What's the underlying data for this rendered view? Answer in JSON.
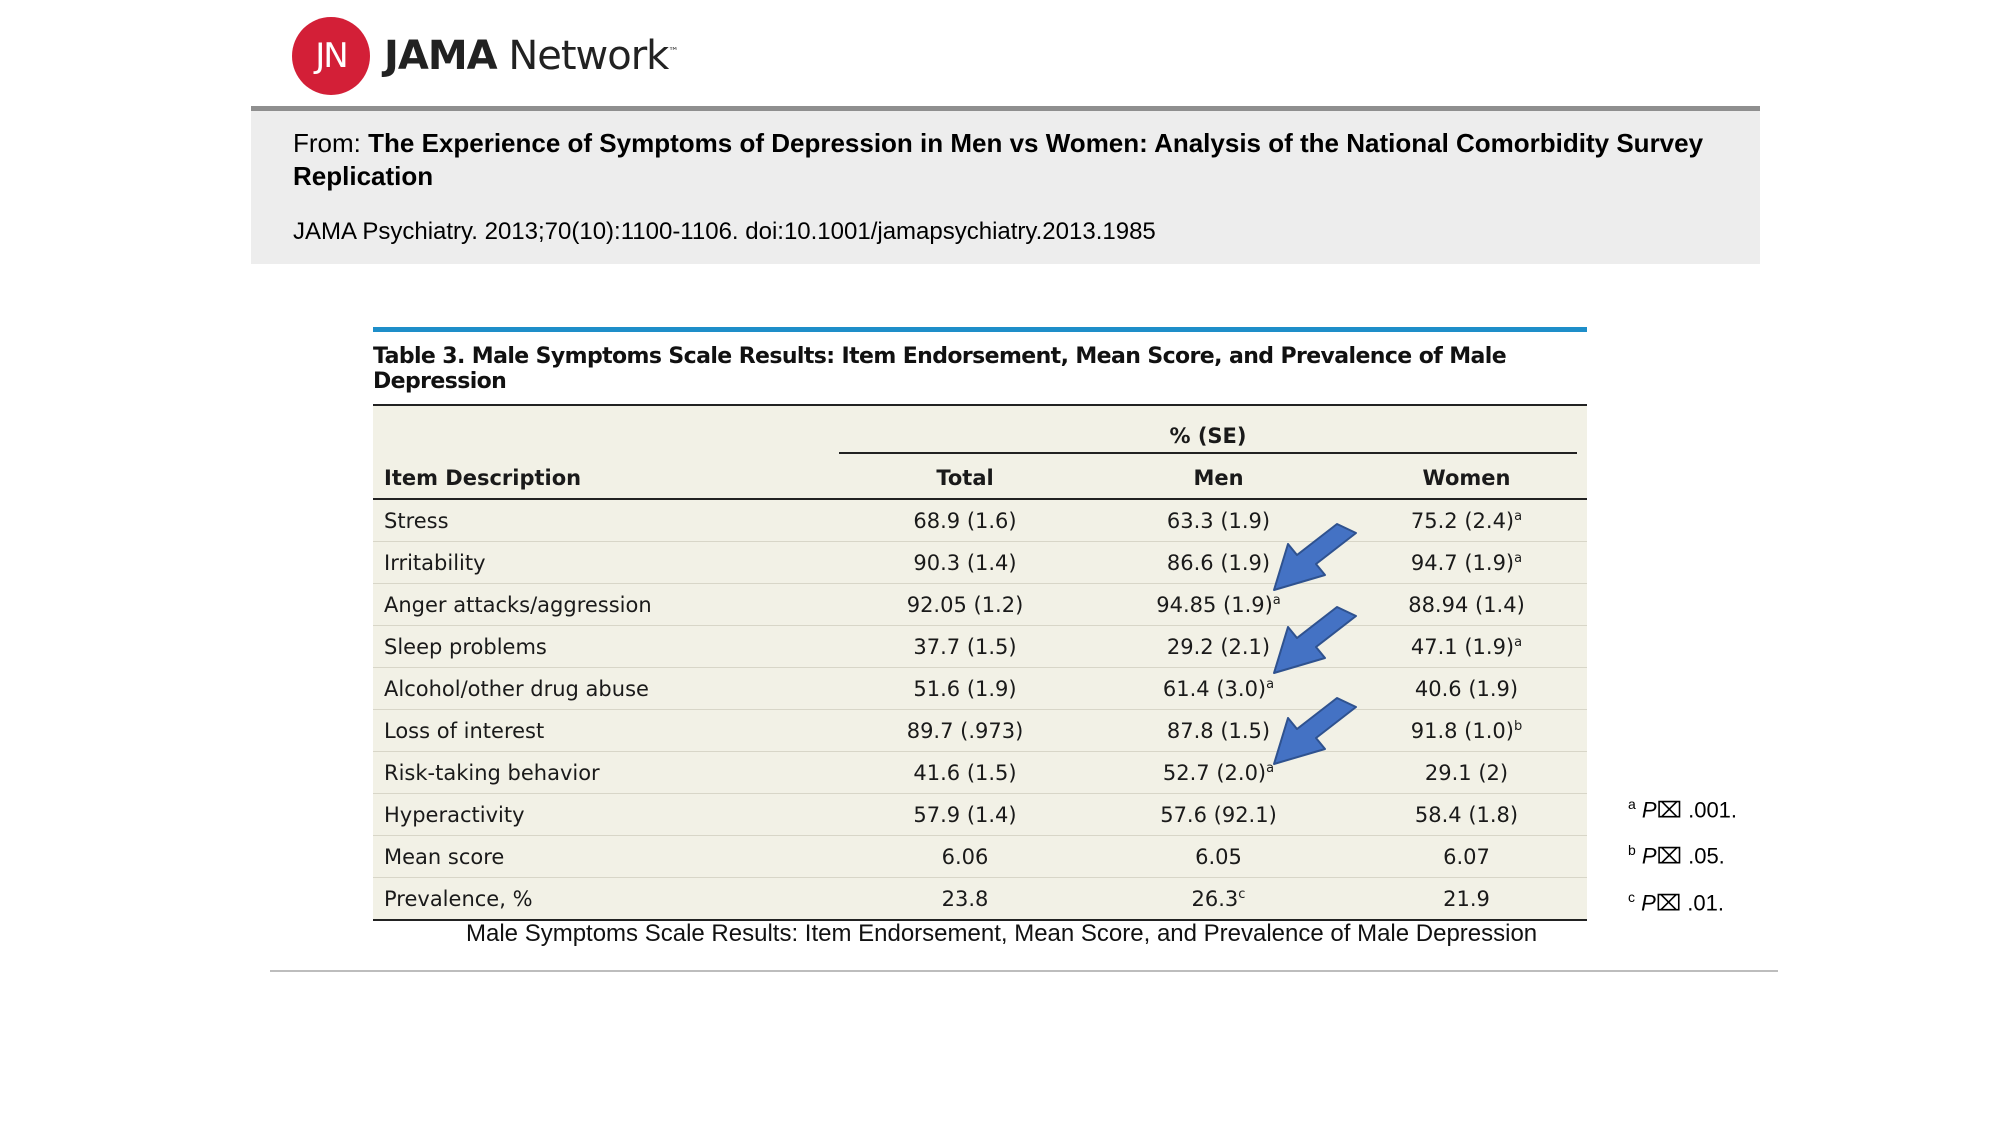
{
  "logo": {
    "initials": "JN",
    "brand": "JAMA",
    "network": "Network",
    "tm": "™"
  },
  "header": {
    "from_label": "From:",
    "article_title": "The Experience of Symptoms of Depression in Men vs Women: Analysis of the National Comorbidity Survey Replication",
    "citation": "JAMA Psychiatry. 2013;70(10):1100-1106. doi:10.1001/jamapsychiatry.2013.1985"
  },
  "table": {
    "title": "Table 3. Male Symptoms Scale Results: Item Endorsement, Mean Score, and Prevalence of Male Depression",
    "group_header": "% (SE)",
    "columns": [
      "Item Description",
      "Total",
      "Men",
      "Women"
    ],
    "rows": [
      {
        "item": "Stress",
        "total": "68.9 (1.6)",
        "total_sup": "",
        "men": "63.3 (1.9)",
        "men_sup": "",
        "women": "75.2 (2.4)",
        "women_sup": "a"
      },
      {
        "item": "Irritability",
        "total": "90.3 (1.4)",
        "total_sup": "",
        "men": "86.6 (1.9)",
        "men_sup": "",
        "women": "94.7 (1.9)",
        "women_sup": "a"
      },
      {
        "item": "Anger attacks/aggression",
        "total": "92.05 (1.2)",
        "total_sup": "",
        "men": "94.85 (1.9)",
        "men_sup": "a",
        "women": "88.94 (1.4)",
        "women_sup": ""
      },
      {
        "item": "Sleep problems",
        "total": "37.7 (1.5)",
        "total_sup": "",
        "men": "29.2 (2.1)",
        "men_sup": "",
        "women": "47.1 (1.9)",
        "women_sup": "a"
      },
      {
        "item": "Alcohol/other drug abuse",
        "total": "51.6 (1.9)",
        "total_sup": "",
        "men": "61.4 (3.0)",
        "men_sup": "a",
        "women": "40.6 (1.9)",
        "women_sup": ""
      },
      {
        "item": "Loss of interest",
        "total": "89.7 (.973)",
        "total_sup": "",
        "men": "87.8 (1.5)",
        "men_sup": "",
        "women": "91.8 (1.0)",
        "women_sup": "b"
      },
      {
        "item": "Risk-taking behavior",
        "total": "41.6 (1.5)",
        "total_sup": "",
        "men": "52.7 (2.0)",
        "men_sup": "a",
        "women": "29.1 (2)",
        "women_sup": ""
      },
      {
        "item": "Hyperactivity",
        "total": "57.9 (1.4)",
        "total_sup": "",
        "men": "57.6 (92.1)",
        "men_sup": "",
        "women": "58.4 (1.8)",
        "women_sup": ""
      },
      {
        "item": "Mean score",
        "total": "6.06",
        "total_sup": "",
        "men": "6.05",
        "men_sup": "",
        "women": "6.07",
        "women_sup": ""
      },
      {
        "item": "Prevalence, %",
        "total": "23.8",
        "total_sup": "",
        "men": "26.3",
        "men_sup": "c",
        "women": "21.9",
        "women_sup": ""
      }
    ]
  },
  "footnotes": [
    {
      "mark": "a",
      "p": "P",
      "glyph": "⌧",
      "value": ".001."
    },
    {
      "mark": "b",
      "p": "P",
      "glyph": "⌧",
      "value": ".05."
    },
    {
      "mark": "c",
      "p": "P",
      "glyph": "⌧",
      "value": ".01."
    }
  ],
  "caption": "Male Symptoms Scale Results: Item Endorsement, Mean Score, and Prevalence of Male Depression",
  "colors": {
    "brand_red": "#d31f37",
    "table_accent": "#1e8ec9",
    "arrow_fill": "#4472c4",
    "arrow_stroke": "#2f528f",
    "table_bg": "#f2f1e6"
  }
}
